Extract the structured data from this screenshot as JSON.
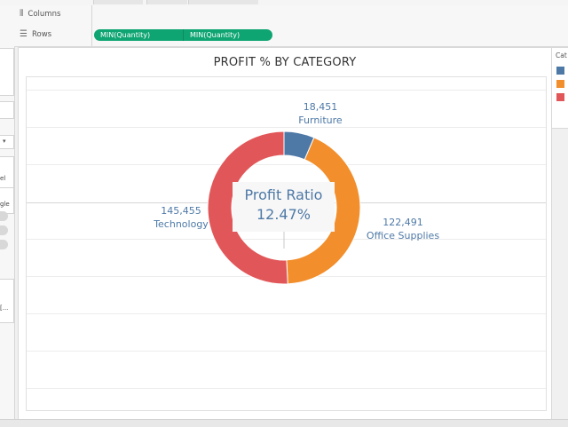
{
  "shelves": {
    "columns_label": "Columns",
    "rows_label": "Rows",
    "rows_pills": [
      "MIN(Quantity)",
      "MIN(Quantity)"
    ]
  },
  "left_panel": {
    "text_el": "el",
    "text_gle": "gle",
    "text_more": "[..."
  },
  "view": {
    "title": "PROFIT % BY CATEGORY",
    "center_label": "Profit Ratio",
    "center_value": "12.47%"
  },
  "legend": {
    "title": "Cat"
  },
  "colors": {
    "accent_pill": "#0fa573",
    "furniture": "#4e79a7",
    "office_supplies": "#f28e2b",
    "technology": "#e15759"
  },
  "chart_data": {
    "type": "pie",
    "title": "PROFIT % BY CATEGORY",
    "categories": [
      "Furniture",
      "Office Supplies",
      "Technology"
    ],
    "values": [
      18451,
      122491,
      145455
    ],
    "value_labels": [
      "18,451",
      "122,491",
      "145,455"
    ],
    "colors": [
      "#4e79a7",
      "#f28e2b",
      "#e15759"
    ],
    "center_text": [
      "Profit Ratio",
      "12.47%"
    ]
  }
}
